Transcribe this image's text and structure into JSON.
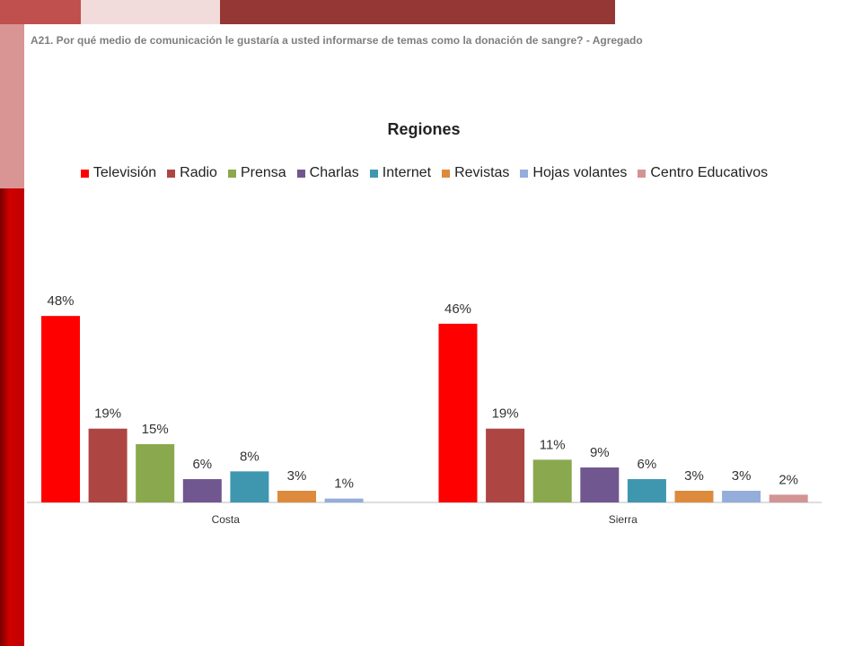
{
  "chart_data": {
    "type": "bar",
    "subtitle": "A21. Por qué medio de comunicación le gustaría a usted informarse de temas como la donación de sangre? - Agregado",
    "title": "Regiones",
    "categories": [
      "Costa",
      "Sierra"
    ],
    "legend": "top",
    "series": [
      {
        "name": "Televisión",
        "color": "#ff0000",
        "values": [
          48,
          46
        ],
        "value_labels": [
          "48%",
          "46%"
        ]
      },
      {
        "name": "Radio",
        "color": "#ad4643",
        "values": [
          19,
          19
        ],
        "value_labels": [
          "19%",
          "19%"
        ]
      },
      {
        "name": "Prensa",
        "color": "#8aa84e",
        "values": [
          15,
          11
        ],
        "value_labels": [
          "15%",
          "11%"
        ]
      },
      {
        "name": "Charlas",
        "color": "#71578f",
        "values": [
          6,
          9
        ],
        "value_labels": [
          "6%",
          "9%"
        ]
      },
      {
        "name": "Internet",
        "color": "#3e97af",
        "values": [
          8,
          6
        ],
        "value_labels": [
          "8%",
          "6%"
        ]
      },
      {
        "name": "Revistas",
        "color": "#dd8a3c",
        "values": [
          3,
          3
        ],
        "value_labels": [
          "3%",
          "3%"
        ]
      },
      {
        "name": "Hojas volantes",
        "color": "#94adda",
        "values": [
          1,
          3
        ],
        "value_labels": [
          "1%",
          "3%"
        ]
      },
      {
        "name": "Centro Educativos",
        "color": "#d39494",
        "values": [
          null,
          2
        ],
        "value_labels": [
          null,
          "2%"
        ]
      }
    ]
  }
}
